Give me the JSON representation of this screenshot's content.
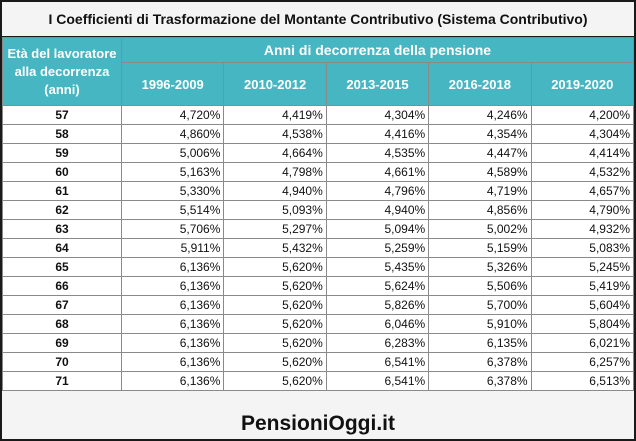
{
  "title": "I Coefficienti di Trasformazione del Montante Contributivo (Sistema Contributivo)",
  "header": {
    "age_column": "Età del lavoratore alla decorrenza (anni)",
    "group": "Anni di decorrenza della pensione",
    "periods": [
      "1996-2009",
      "2010-2012",
      "2013-2015",
      "2016-2018",
      "2019-2020"
    ]
  },
  "rows": [
    {
      "age": "57",
      "values": [
        "4,720%",
        "4,419%",
        "4,304%",
        "4,246%",
        "4,200%"
      ]
    },
    {
      "age": "58",
      "values": [
        "4,860%",
        "4,538%",
        "4,416%",
        "4,354%",
        "4,304%"
      ]
    },
    {
      "age": "59",
      "values": [
        "5,006%",
        "4,664%",
        "4,535%",
        "4,447%",
        "4,414%"
      ]
    },
    {
      "age": "60",
      "values": [
        "5,163%",
        "4,798%",
        "4,661%",
        "4,589%",
        "4,532%"
      ]
    },
    {
      "age": "61",
      "values": [
        "5,330%",
        "4,940%",
        "4,796%",
        "4,719%",
        "4,657%"
      ]
    },
    {
      "age": "62",
      "values": [
        "5,514%",
        "5,093%",
        "4,940%",
        "4,856%",
        "4,790%"
      ]
    },
    {
      "age": "63",
      "values": [
        "5,706%",
        "5,297%",
        "5,094%",
        "5,002%",
        "4,932%"
      ]
    },
    {
      "age": "64",
      "values": [
        "5,911%",
        "5,432%",
        "5,259%",
        "5,159%",
        "5,083%"
      ]
    },
    {
      "age": "65",
      "values": [
        "6,136%",
        "5,620%",
        "5,435%",
        "5,326%",
        "5,245%"
      ]
    },
    {
      "age": "66",
      "values": [
        "6,136%",
        "5,620%",
        "5,624%",
        "5,506%",
        "5,419%"
      ]
    },
    {
      "age": "67",
      "values": [
        "6,136%",
        "5,620%",
        "5,826%",
        "5,700%",
        "5,604%"
      ]
    },
    {
      "age": "68",
      "values": [
        "6,136%",
        "5,620%",
        "6,046%",
        "5,910%",
        "5,804%"
      ]
    },
    {
      "age": "69",
      "values": [
        "6,136%",
        "5,620%",
        "6,283%",
        "6,135%",
        "6,021%"
      ]
    },
    {
      "age": "70",
      "values": [
        "6,136%",
        "5,620%",
        "6,541%",
        "6,378%",
        "6,257%"
      ]
    },
    {
      "age": "71",
      "values": [
        "6,136%",
        "5,620%",
        "6,541%",
        "6,378%",
        "6,513%"
      ]
    }
  ],
  "brand": "PensioniOggi.it",
  "colors": {
    "header_bg": "#46b6c2",
    "header_text": "#ffffff",
    "border": "#8a8a8a"
  }
}
